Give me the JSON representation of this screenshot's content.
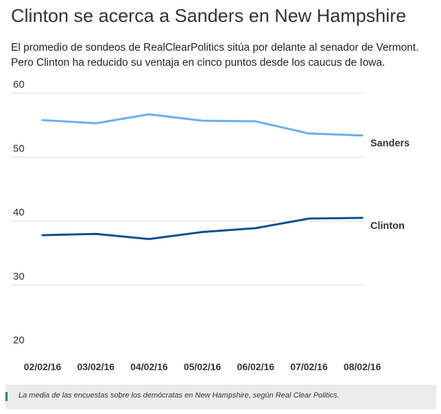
{
  "header": {
    "title": "Clinton se acerca a Sanders en New Hampshire",
    "subtitle": "El promedio de sondeos de RealClearPolitics sitúa por delante al senador de Vermont. Pero Clinton ha reducido su ventaja en cinco puntos desde los caucus de Iowa."
  },
  "chart_data": {
    "type": "line",
    "categories": [
      "02/02/16",
      "03/02/16",
      "04/02/16",
      "05/02/16",
      "06/02/16",
      "07/02/16",
      "08/02/16"
    ],
    "series": [
      {
        "name": "Sanders",
        "color": "#6aaef0",
        "values": [
          55.8,
          55.3,
          56.7,
          55.7,
          55.6,
          53.7,
          53.4
        ]
      },
      {
        "name": "Clinton",
        "color": "#0b4f8c",
        "values": [
          37.8,
          38.0,
          37.2,
          38.3,
          38.9,
          40.4,
          40.5
        ]
      }
    ],
    "yticks": [
      "60",
      "50",
      "40",
      "30",
      "20"
    ],
    "ylim": [
      20,
      60
    ],
    "grid": true,
    "legend": "inline-right"
  },
  "caption": "La media de las encuestas sobre los demócratas en New Hampshire, según Real Clear Politics."
}
